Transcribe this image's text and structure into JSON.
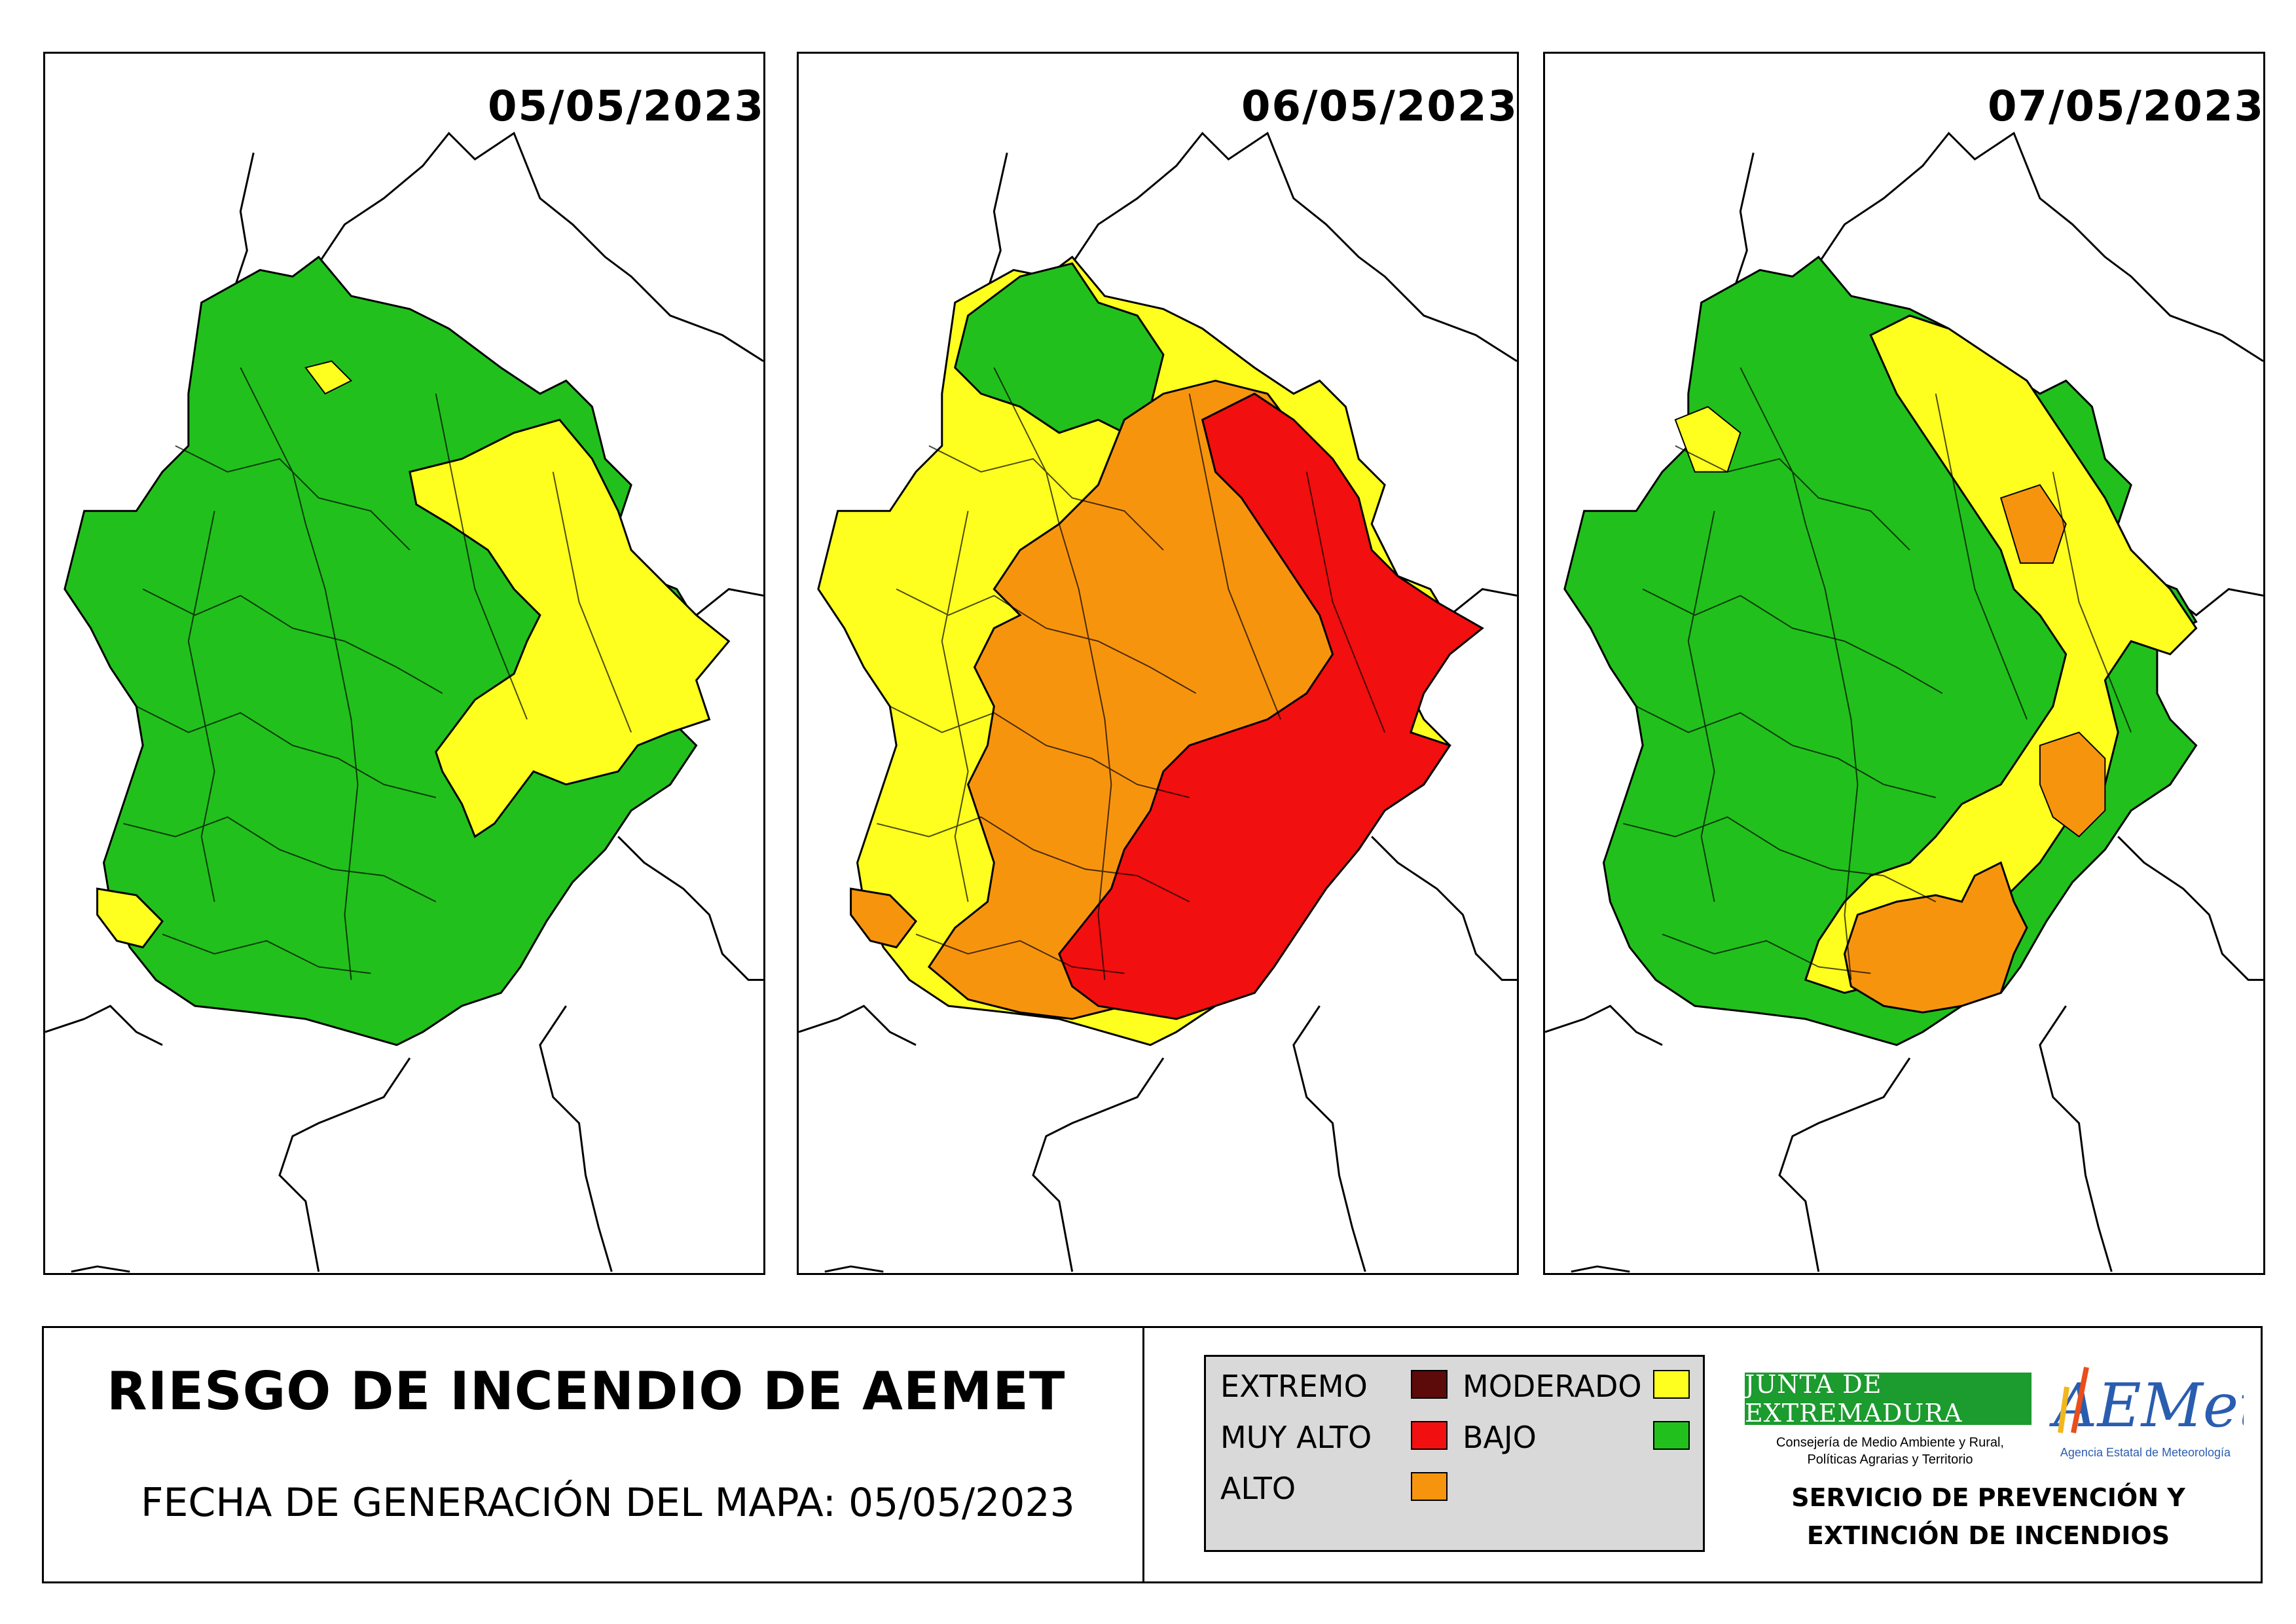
{
  "maps": [
    {
      "date": "05/05/2023"
    },
    {
      "date": "06/05/2023"
    },
    {
      "date": "07/05/2023"
    }
  ],
  "title": "RIESGO DE INCENDIO DE AEMET",
  "generation_date": "FECHA DE GENERACIÓN DEL MAPA: 05/05/2023",
  "legend": {
    "items": [
      {
        "label": "EXTREMO",
        "color": "#5c0a0a"
      },
      {
        "label": "MUY ALTO",
        "color": "#f20f0f"
      },
      {
        "label": "ALTO",
        "color": "#f7940e"
      },
      {
        "label": "MODERADO",
        "color": "#ffff1f"
      },
      {
        "label": "BAJO",
        "color": "#22c01c"
      }
    ]
  },
  "logos": {
    "junta_name": "JUNTA DE EXTREMADURA",
    "junta_line1": "Consejería de Medio Ambiente y Rural,",
    "junta_line2": "Políticas Agrarias y Territorio",
    "aemet_name": "AEMet",
    "aemet_sub": "Agencia Estatal de Meteorología"
  },
  "service": {
    "line1": "SERVICIO DE PREVENCIÓN Y",
    "line2": "EXTINCIÓN DE INCENDIOS"
  },
  "colors": {
    "bajo": "#22c01c",
    "moderado": "#ffff1f",
    "alto": "#f7940e",
    "muy_alto": "#f20f0f"
  }
}
